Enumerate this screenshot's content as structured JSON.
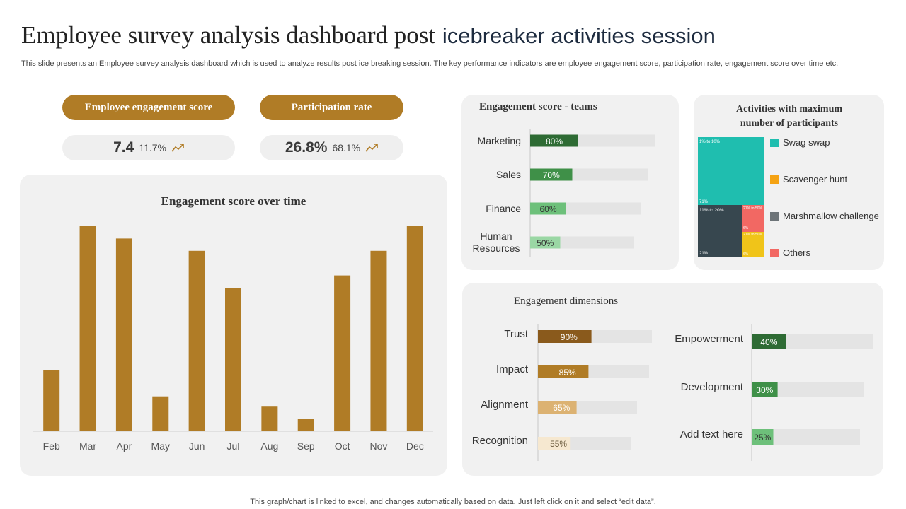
{
  "header": {
    "title_part1": "Employee survey analysis dashboard post",
    "title_part2": "icebreaker activities session",
    "subtitle": "This slide presents an Employee survey analysis dashboard which is used to analyze results post ice breaking session. The key performance indicators are employee engagement score, participation rate, engagement score over time etc."
  },
  "kpis": [
    {
      "label": "Employee engagement score",
      "value": "7.4",
      "change": "11.7%"
    },
    {
      "label": "Participation  rate",
      "value": "26.8%",
      "change": "68.1%"
    }
  ],
  "footer": "This graph/chart is linked to excel,  and changes automatically based on data. Just left click on it and select “edit data”.",
  "colors": {
    "gold": "#b07c26",
    "panel": "#f1f1f1"
  },
  "chart_data": [
    {
      "type": "bar",
      "title": "Engagement score over time",
      "categories": [
        "Feb",
        "Mar",
        "Apr",
        "May",
        "Jun",
        "Jul",
        "Aug",
        "Sep",
        "Oct",
        "Nov",
        "Dec"
      ],
      "values": [
        30,
        100,
        94,
        17,
        88,
        70,
        12,
        6,
        76,
        88,
        100
      ],
      "ylim": [
        0,
        100
      ],
      "color": "#b07c26"
    },
    {
      "type": "bar",
      "orientation": "horizontal",
      "title": "Engagement  score - teams",
      "categories": [
        "Marketing",
        "Sales",
        "Finance",
        "Human Resources"
      ],
      "values": [
        80,
        70,
        60,
        50
      ],
      "labels": [
        "80%",
        "70%",
        "60%",
        "50%"
      ],
      "colors": [
        "#2e6b34",
        "#3f9048",
        "#6dc07a",
        "#9ad7a4"
      ]
    },
    {
      "type": "treemap",
      "title": "Activities with maximum number  of participants",
      "series": [
        {
          "name": "Swag swap",
          "label_top": "1% to 10%",
          "label_bottom": "71%",
          "color": "#1fbeaf"
        },
        {
          "name": "Scavenger  hunt",
          "label_top": "21% to 50%",
          "label_bottom": "6%",
          "color": "#f0c419"
        },
        {
          "name": "Marshmallow  challenge",
          "label_top": "11% to 20%",
          "label_bottom": "21%",
          "color": "#37474f"
        },
        {
          "name": "Others",
          "label_top": "21% to 50%",
          "label_bottom": "6%",
          "color": "#f26863"
        }
      ]
    },
    {
      "type": "bar",
      "orientation": "horizontal",
      "title": "Engagement  dimensions",
      "groups": [
        {
          "categories": [
            "Trust",
            "Impact",
            "Alignment",
            "Recognition"
          ],
          "values": [
            90,
            85,
            65,
            55
          ],
          "labels": [
            "90%",
            "85%",
            "65%",
            "55%"
          ],
          "colors": [
            "#8a5a1c",
            "#b07c26",
            "#dcb272",
            "#f6e8d0"
          ]
        },
        {
          "categories": [
            "Empowerment",
            "Development",
            "Add text here"
          ],
          "values": [
            40,
            30,
            25
          ],
          "labels": [
            "40%",
            "30%",
            "25%"
          ],
          "colors": [
            "#2e6b34",
            "#3f9048",
            "#6dc07a"
          ]
        }
      ]
    }
  ]
}
